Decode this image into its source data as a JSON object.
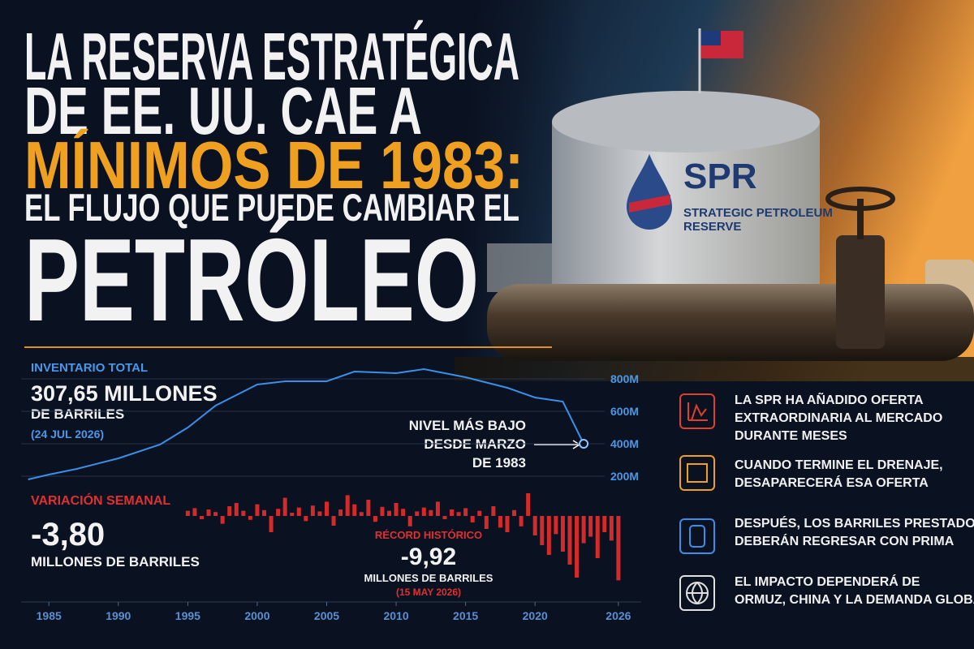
{
  "header": {
    "lines": [
      "LA RESERVA ESTRATÉGICA",
      "DE EE. UU. CAE A",
      "MÍNIMOS DE 1983:",
      "EL FLUJO QUE PUEDE CAMBIAR EL",
      "PETRÓLEO"
    ]
  },
  "tank": {
    "logo": "SPR",
    "name": [
      "STRATEGIC PETROLEUM",
      "RESERVE"
    ]
  },
  "chart_data": [
    {
      "type": "line",
      "title": "INVENTARIO TOTAL",
      "headline": [
        "307,65 MILLONES",
        "DE BARRILES",
        "(24 JUL 2026)"
      ],
      "annotation": [
        "NIVEL MÁS BAJO",
        "DESDE MARZO",
        "DE 1983"
      ],
      "x": [
        1983.5,
        1985,
        1987,
        1990,
        1993,
        1995,
        1997,
        2000,
        2002,
        2005,
        2007,
        2010,
        2012,
        2015,
        2018,
        2020,
        2022,
        2023.5
      ],
      "values": [
        180,
        210,
        245,
        310,
        395,
        500,
        635,
        765,
        785,
        785,
        845,
        835,
        860,
        810,
        745,
        685,
        660,
        400
      ],
      "color": "#3a8fe8",
      "xlim": [
        1983,
        2027
      ],
      "ylim": [
        100,
        900
      ],
      "yticks": [
        {
          "value": 200,
          "label": "200M"
        },
        {
          "value": 400,
          "label": "400M"
        },
        {
          "value": 600,
          "label": "600M"
        },
        {
          "value": 800,
          "label": "800M"
        }
      ],
      "grid": true
    },
    {
      "type": "bar",
      "title": "VARIACIÓN SEMANAL",
      "headline": [
        "-3,80",
        "MILLONES DE BARRILES"
      ],
      "annotation": [
        "RÉCORD HISTÓRICO",
        "-9,92",
        "MILLONES DE BARRILES",
        "(15 MAY 2026)"
      ],
      "x": [
        1995,
        1995.5,
        1996,
        1996.5,
        1997,
        1997.5,
        1998,
        1998.5,
        1999,
        1999.5,
        2000,
        2000.5,
        2001,
        2001.5,
        2002,
        2002.5,
        2003,
        2003.5,
        2004,
        2004.5,
        2005,
        2005.5,
        2006,
        2006.5,
        2007,
        2007.5,
        2008,
        2008.5,
        2009,
        2009.5,
        2010,
        2010.5,
        2011,
        2011.5,
        2012,
        2012.5,
        2013,
        2013.5,
        2014,
        2014.5,
        2015,
        2015.5,
        2016,
        2016.5,
        2017,
        2017.5,
        2018,
        2018.5,
        2019,
        2019.5,
        2020,
        2020.5,
        2021,
        2021.5,
        2022,
        2022.5,
        2023,
        2023.5,
        2024,
        2024.5,
        2025,
        2025.5,
        2026
      ],
      "values": [
        0.8,
        1.2,
        -0.5,
        1.0,
        0.6,
        -1.2,
        1.5,
        2.0,
        0.8,
        -0.6,
        1.8,
        0.9,
        -2.5,
        1.1,
        2.8,
        0.5,
        1.3,
        -0.8,
        1.6,
        0.7,
        2.2,
        -1.5,
        1.0,
        3.2,
        1.8,
        0.6,
        2.5,
        -0.9,
        1.4,
        0.8,
        2.0,
        1.1,
        -1.6,
        0.7,
        1.3,
        0.9,
        2.2,
        -0.5,
        1.0,
        0.6,
        1.2,
        -1.0,
        0.8,
        -2.0,
        1.5,
        -1.8,
        -2.5,
        0.9,
        -1.6,
        3.5,
        -3.0,
        -4.5,
        -6.0,
        -2.8,
        -5.5,
        -7.5,
        -9.5,
        -4.2,
        -3.2,
        -6.5,
        -2.5,
        -3.8,
        -9.92
      ],
      "color": "#d42a2a",
      "xlim": [
        1983,
        2027
      ],
      "ylim": [
        -10,
        4
      ],
      "xticks": [
        1985,
        1990,
        1995,
        2000,
        2005,
        2010,
        2015,
        2020,
        2026
      ]
    }
  ],
  "bullets": [
    [
      "LA SPR HA AÑADIDO OFERTA",
      "EXTRAORDINARIA AL MERCADO",
      "DURANTE MESES"
    ],
    [
      "CUANDO TERMINE EL DRENAJE,",
      "DESAPARECERÁ ESA OFERTA"
    ],
    [
      "DESPUÉS, LOS BARRILES PRESTADOS",
      "DEBERÁN REGRESAR CON PRIMA"
    ],
    [
      "EL IMPACTO DEPENDERÁ DE",
      "ORMUZ, CHINA Y LA DEMANDA GLOBAL"
    ]
  ]
}
